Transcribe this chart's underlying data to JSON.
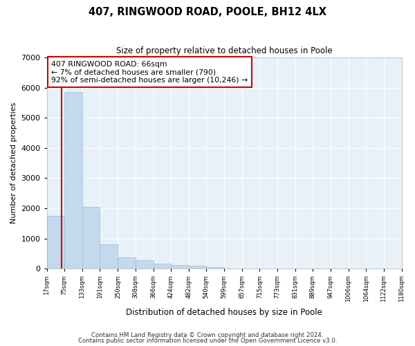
{
  "title": "407, RINGWOOD ROAD, POOLE, BH12 4LX",
  "subtitle": "Size of property relative to detached houses in Poole",
  "xlabel": "Distribution of detached houses by size in Poole",
  "ylabel": "Number of detached properties",
  "bar_color": "#c5d9ee",
  "bar_edge_color": "#9bbbd8",
  "background_color": "#e8f0f8",
  "grid_color": "#ffffff",
  "figure_bg": "#ffffff",
  "bin_edges": [
    17,
    75,
    133,
    191,
    250,
    308,
    366,
    424,
    482,
    540,
    599,
    657,
    715,
    773,
    831,
    889,
    947,
    1006,
    1064,
    1122,
    1180
  ],
  "bin_labels": [
    "17sqm",
    "75sqm",
    "133sqm",
    "191sqm",
    "250sqm",
    "308sqm",
    "366sqm",
    "424sqm",
    "482sqm",
    "540sqm",
    "599sqm",
    "657sqm",
    "715sqm",
    "773sqm",
    "831sqm",
    "889sqm",
    "947sqm",
    "1006sqm",
    "1064sqm",
    "1122sqm",
    "1180sqm"
  ],
  "bar_heights": [
    1750,
    5850,
    2050,
    800,
    370,
    280,
    160,
    120,
    90,
    60,
    0,
    0,
    0,
    0,
    0,
    0,
    0,
    0,
    0,
    0
  ],
  "property_size": 66,
  "vline_color": "#cc0000",
  "annotation_line1": "407 RINGWOOD ROAD: 66sqm",
  "annotation_line2": "← 7% of detached houses are smaller (790)",
  "annotation_line3": "92% of semi-detached houses are larger (10,246) →",
  "annotation_box_color": "#ffffff",
  "annotation_box_edge_color": "#cc0000",
  "ylim": [
    0,
    7000
  ],
  "yticks": [
    0,
    1000,
    2000,
    3000,
    4000,
    5000,
    6000,
    7000
  ],
  "footer1": "Contains HM Land Registry data © Crown copyright and database right 2024.",
  "footer2": "Contains public sector information licensed under the Open Government Licence v3.0."
}
